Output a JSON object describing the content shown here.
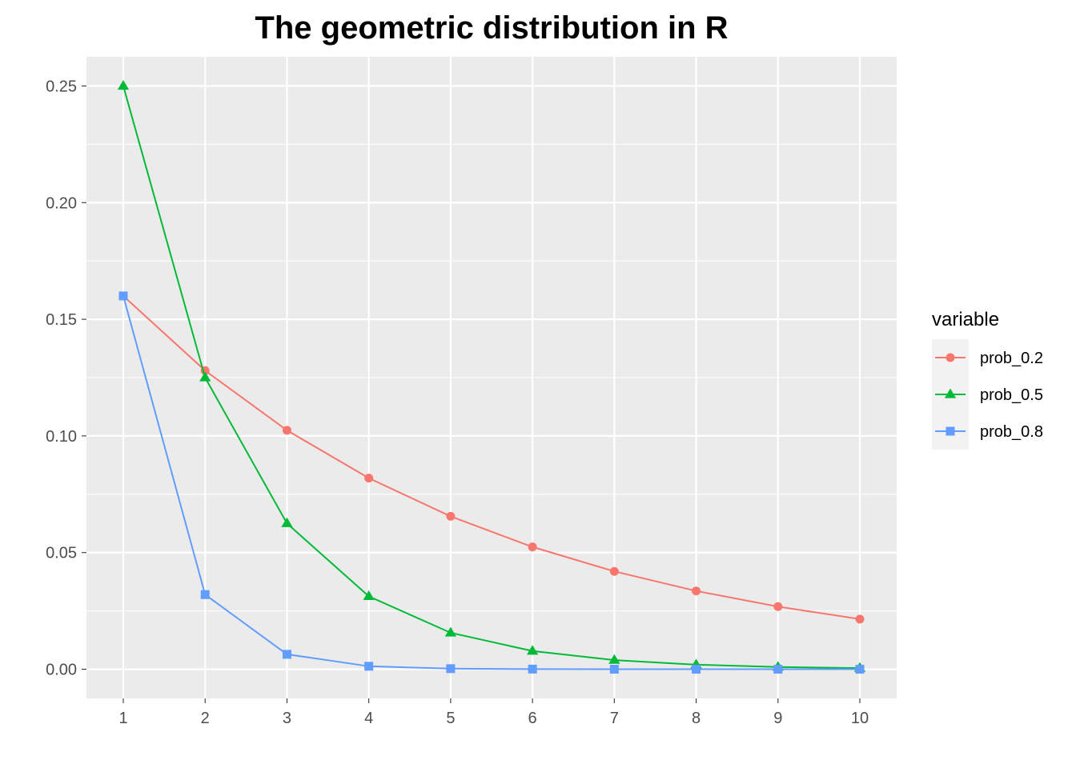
{
  "chart_data": {
    "type": "line",
    "title": "The geometric distribution in R",
    "xlabel": "",
    "ylabel": "",
    "x": [
      1,
      2,
      3,
      4,
      5,
      6,
      7,
      8,
      9,
      10
    ],
    "x_ticks": [
      "1",
      "2",
      "3",
      "4",
      "5",
      "6",
      "7",
      "8",
      "9",
      "10"
    ],
    "y_ticks": [
      0.0,
      0.05,
      0.1,
      0.15,
      0.2,
      0.25
    ],
    "y_tick_labels": [
      "0.00",
      "0.05",
      "0.10",
      "0.15",
      "0.20",
      "0.25"
    ],
    "xlim": [
      0.55,
      10.45
    ],
    "ylim": [
      -0.0125,
      0.2625
    ],
    "grid": true,
    "legend": {
      "title": "variable",
      "placement": "right"
    },
    "series": [
      {
        "name": "prob_0.2",
        "color": "#F8766D",
        "marker": "circle",
        "values": [
          0.16,
          0.128,
          0.1024,
          0.08192,
          0.065536,
          0.0524288,
          0.04194304,
          0.03355443,
          0.02684355,
          0.02147484
        ]
      },
      {
        "name": "prob_0.5",
        "color": "#00BA38",
        "marker": "triangle",
        "values": [
          0.25,
          0.125,
          0.0625,
          0.03125,
          0.015625,
          0.0078125,
          0.00390625,
          0.001953125,
          0.0009765625,
          0.00048828125
        ]
      },
      {
        "name": "prob_0.8",
        "color": "#619CFF",
        "marker": "square",
        "values": [
          0.16,
          0.032,
          0.0064,
          0.00128,
          0.000256,
          5.12e-05,
          1.024e-05,
          2.048e-06,
          4.096e-07,
          8.192e-08
        ]
      }
    ]
  }
}
